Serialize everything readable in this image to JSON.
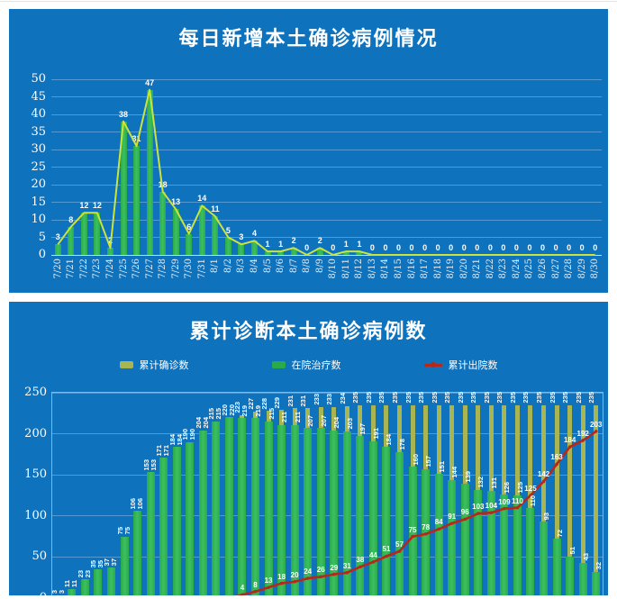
{
  "colors": {
    "panel_bg": "#0E72BD",
    "bar_green": "#2BAA4D",
    "bar_green_hi": "#3CC05F",
    "line_yellow": "#CBE43C",
    "bar_olive": "#A9B553",
    "line_red": "#B8271A",
    "text_white": "#FFFFFF",
    "tick_blue_white": "#E3F0FA"
  },
  "chart_data": [
    {
      "type": "bar",
      "title": "每日新增本土确诊病例情况",
      "xlabel": "",
      "ylabel": "",
      "ylim": [
        0,
        50
      ],
      "ytick_step": 5,
      "grid": true,
      "legend_position": "none",
      "note": "green bars with matching yellow-green line overlay; white data labels",
      "categories": [
        "7/20",
        "7/21",
        "7/22",
        "7/23",
        "7/24",
        "7/25",
        "7/26",
        "7/27",
        "7/28",
        "7/29",
        "7/30",
        "7/31",
        "8/1",
        "8/2",
        "8/3",
        "8/4",
        "8/5",
        "8/6",
        "8/7",
        "8/8",
        "8/9",
        "8/10",
        "8/11",
        "8/12",
        "8/13",
        "8/14",
        "8/15",
        "8/16",
        "8/17",
        "8/18",
        "8/19",
        "8/20",
        "8/21",
        "8/22",
        "8/23",
        "8/24",
        "8/25",
        "8/26",
        "8/27",
        "8/28",
        "8/29",
        "8/30"
      ],
      "values": [
        3,
        8,
        12,
        12,
        2,
        38,
        31,
        47,
        18,
        13,
        6,
        14,
        11,
        5,
        3,
        4,
        1,
        1,
        2,
        0,
        2,
        0,
        1,
        1,
        0,
        0,
        0,
        0,
        0,
        0,
        0,
        0,
        0,
        0,
        0,
        0,
        0,
        0,
        0,
        0,
        0,
        0
      ]
    },
    {
      "type": "bar",
      "title": "累计诊断本土确诊病例数",
      "xlabel": "",
      "ylabel": "",
      "ylim": [
        0,
        250
      ],
      "ytick_step": 50,
      "grid": true,
      "legend_position": "top",
      "legend": [
        {
          "label": "累计确诊数",
          "marker": "square",
          "color_key": "bar_olive"
        },
        {
          "label": "在院治疗数",
          "marker": "square",
          "color_key": "bar_green"
        },
        {
          "label": "累计出院数",
          "marker": "line",
          "color_key": "line_red"
        }
      ],
      "categories": [
        "7/20",
        "7/21",
        "7/22",
        "7/23",
        "7/24",
        "7/25",
        "7/26",
        "7/27",
        "7/28",
        "7/29",
        "7/30",
        "7/31",
        "8/1",
        "8/2",
        "8/3",
        "8/4",
        "8/5",
        "8/6",
        "8/7",
        "8/8",
        "8/9",
        "8/10",
        "8/11",
        "8/12",
        "8/13",
        "8/14",
        "8/15",
        "8/16",
        "8/17",
        "8/18",
        "8/19",
        "8/20",
        "8/21",
        "8/22",
        "8/23",
        "8/24",
        "8/25",
        "8/26",
        "8/27",
        "8/28",
        "8/29",
        "8/30"
      ],
      "series": [
        {
          "name": "累计确诊数",
          "kind": "bar-back",
          "values": [
            3,
            11,
            23,
            35,
            37,
            75,
            106,
            153,
            171,
            184,
            190,
            204,
            215,
            220,
            223,
            227,
            228,
            229,
            231,
            231,
            233,
            233,
            234,
            235,
            235,
            235,
            235,
            235,
            235,
            235,
            235,
            235,
            235,
            235,
            235,
            235,
            235,
            235,
            235,
            235,
            235,
            235
          ]
        },
        {
          "name": "在院治疗数",
          "kind": "bar-front",
          "values": [
            3,
            11,
            23,
            35,
            37,
            75,
            106,
            153,
            171,
            184,
            190,
            204,
            215,
            220,
            219,
            219,
            215,
            211,
            211,
            207,
            207,
            204,
            203,
            197,
            191,
            184,
            178,
            160,
            157,
            151,
            144,
            139,
            132,
            131,
            126,
            125,
            110,
            93,
            72,
            51,
            43,
            32
          ]
        },
        {
          "name": "累计出院数",
          "kind": "line",
          "values": [
            0,
            0,
            0,
            0,
            0,
            0,
            0,
            0,
            0,
            0,
            0,
            0,
            0,
            0,
            4,
            8,
            13,
            18,
            20,
            24,
            26,
            29,
            31,
            38,
            44,
            51,
            57,
            75,
            78,
            84,
            91,
            96,
            103,
            104,
            109,
            110,
            125,
            142,
            163,
            184,
            192,
            203
          ]
        }
      ]
    }
  ]
}
